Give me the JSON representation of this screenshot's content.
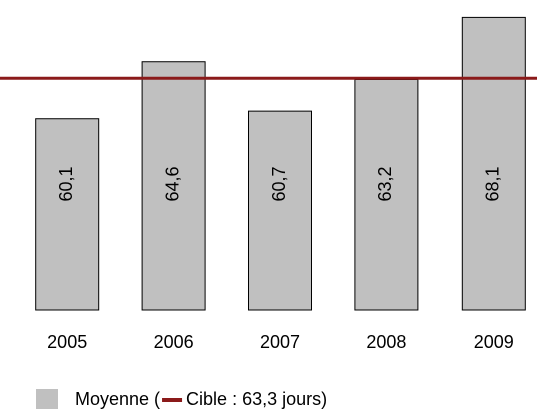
{
  "chart_data": {
    "type": "bar",
    "categories": [
      "2005",
      "2006",
      "2007",
      "2008",
      "2009"
    ],
    "series": [
      {
        "name": "Moyenne (",
        "color": "#c0c0c0",
        "values": [
          60.1,
          64.6,
          60.7,
          63.2,
          68.1
        ],
        "value_labels": [
          "60,1",
          "64,6",
          "60,7",
          "63,2",
          "68,1"
        ]
      }
    ],
    "target": {
      "name": "Cible : 63,3 jours)",
      "value": 63.3,
      "color": "#8b1a1a"
    },
    "ylim": [
      45,
      69
    ],
    "legend": "bottom"
  }
}
